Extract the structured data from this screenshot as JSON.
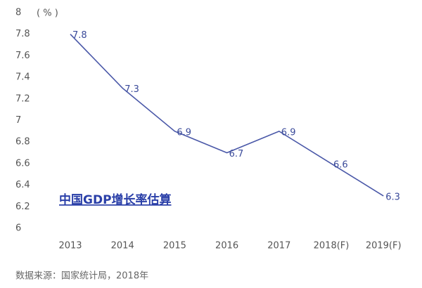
{
  "chart_data": {
    "type": "line",
    "title": "中国GDP增长率估算",
    "y_label": "( % )",
    "source": "数据来源：国家统计局，2018年",
    "categories": [
      "2013",
      "2014",
      "2015",
      "2016",
      "2017",
      "2018(F)",
      "2019(F)"
    ],
    "values": [
      7.8,
      7.3,
      6.9,
      6.7,
      6.9,
      6.6,
      6.3
    ],
    "color": "#4a58a8",
    "ylim": [
      6,
      8
    ],
    "yticks": [
      6,
      6.2,
      6.4,
      6.6,
      6.8,
      7,
      7.2,
      7.4,
      7.6,
      7.8,
      8
    ],
    "grid": false
  }
}
